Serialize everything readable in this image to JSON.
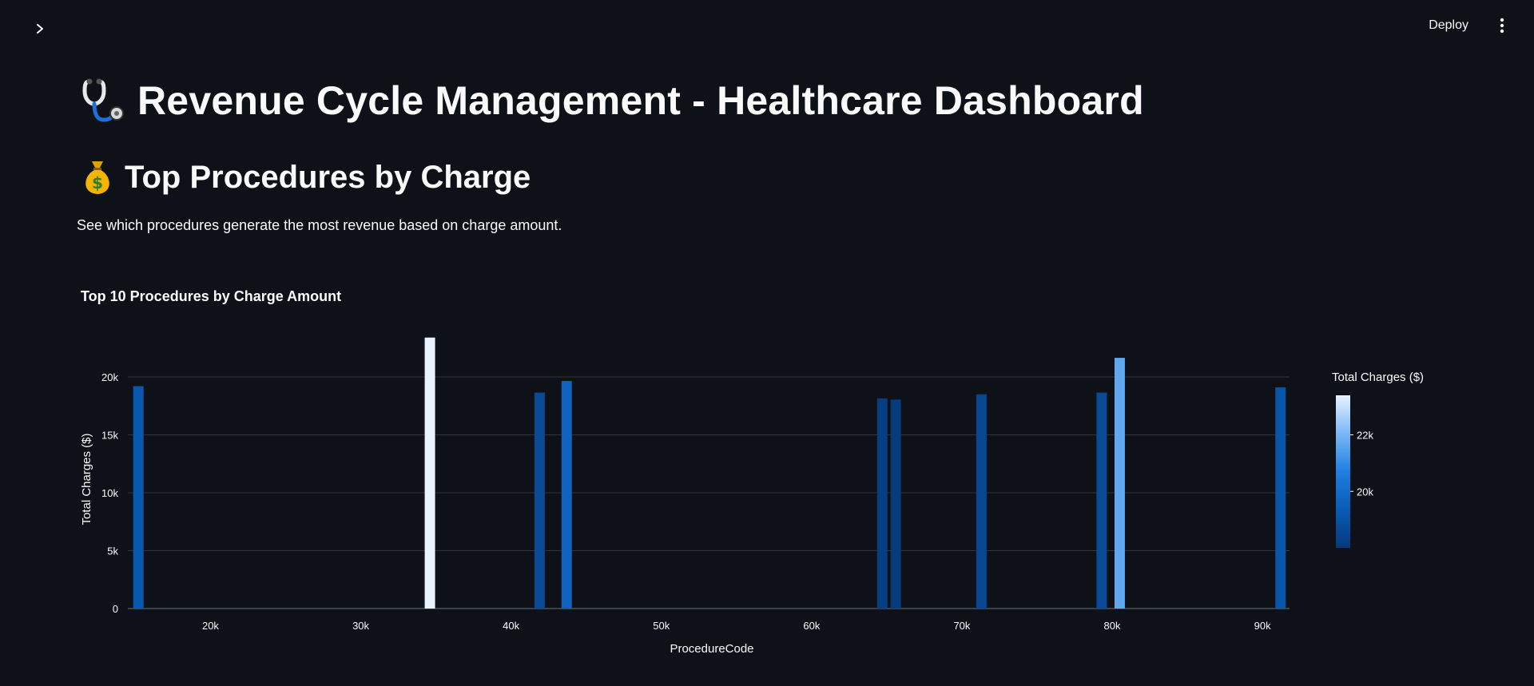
{
  "app": {
    "deploy_label": "Deploy"
  },
  "header": {
    "title": "Revenue Cycle Management - Healthcare Dashboard",
    "section_title": "Top Procedures by Charge",
    "description": "See which procedures generate the most revenue based on charge amount."
  },
  "icons": {
    "sidebar_toggle": "chevron-right-icon",
    "menu": "more-vertical-icon",
    "title_icon": "stethoscope-icon",
    "section_icon": "money-bag-icon"
  },
  "chart_data": {
    "type": "bar",
    "title": "Top 10 Procedures by Charge Amount",
    "xlabel": "ProcedureCode",
    "ylabel": "Total Charges ($)",
    "xlim": [
      14500,
      91800
    ],
    "ylim": [
      0,
      24000
    ],
    "x_ticks": [
      20000,
      30000,
      40000,
      50000,
      60000,
      70000,
      80000,
      90000
    ],
    "x_tick_labels": [
      "20k",
      "30k",
      "40k",
      "50k",
      "60k",
      "70k",
      "80k",
      "90k"
    ],
    "y_ticks": [
      0,
      5000,
      10000,
      15000,
      20000
    ],
    "y_tick_labels": [
      "0",
      "5k",
      "10k",
      "15k",
      "20k"
    ],
    "grid": true,
    "bars": [
      {
        "x": 15200,
        "value": 19200
      },
      {
        "x": 34600,
        "value": 23400
      },
      {
        "x": 41900,
        "value": 18650
      },
      {
        "x": 43700,
        "value": 19650
      },
      {
        "x": 64700,
        "value": 18150
      },
      {
        "x": 65600,
        "value": 18050
      },
      {
        "x": 71300,
        "value": 18500
      },
      {
        "x": 79300,
        "value": 18650
      },
      {
        "x": 80500,
        "value": 21650
      },
      {
        "x": 91200,
        "value": 19100
      }
    ],
    "colorbar": {
      "title": "Total Charges ($)",
      "range": [
        18000,
        23400
      ],
      "ticks": [
        20000,
        22000
      ],
      "tick_labels": [
        "20k",
        "22k"
      ],
      "colors": [
        "#063a7a",
        "#0a5bb5",
        "#1f7fe0",
        "#7ab8f5",
        "#e8f3ff"
      ]
    }
  }
}
